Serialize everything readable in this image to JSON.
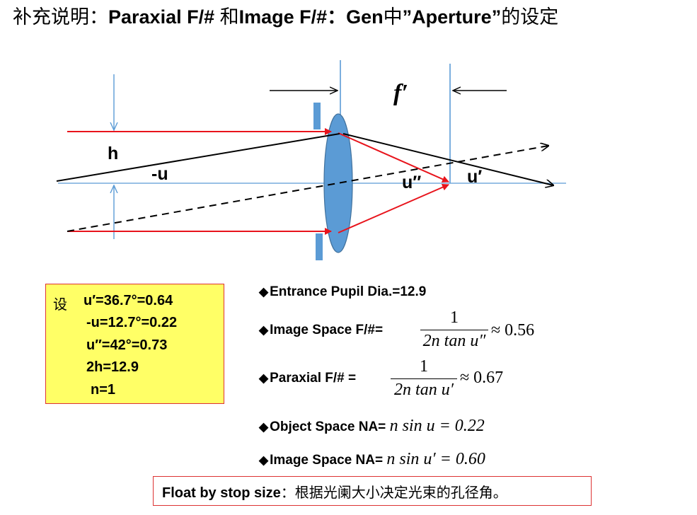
{
  "title": {
    "prefix": "补充说明：",
    "part1": "Paraxial F/# ",
    "conj": "和",
    "part2": "Image F/#：Gen",
    "mid": "中",
    "part3": "”Aperture”",
    "suffix": "的设定"
  },
  "diagram": {
    "labels": {
      "h": "h",
      "neg_u": "-u",
      "u_double_prime": "u′′",
      "u_prime": "u′",
      "f_prime": "f′"
    },
    "colors": {
      "ray_red": "#e8141c",
      "ray_black": "#000000",
      "lens_fill": "#5b9bd5",
      "axis": "#5b9bd5"
    }
  },
  "given": {
    "label": "设",
    "rows": [
      "u′=36.7°=0.64",
      "-u=12.7°=0.22",
      "u′′=42°=0.73",
      "2h=12.9",
      "n=1"
    ]
  },
  "bullets": {
    "symbol": "◆",
    "entrance_pupil": "Entrance Pupil Dia.=12.9",
    "image_space_f": "Image Space F/#=",
    "image_f_num": "1",
    "image_f_den": "2n tan u″",
    "image_f_approx": "≈ 0.56",
    "paraxial_f": "Paraxial F/# =",
    "paraxial_num": "1",
    "paraxial_den": "2n tan u′",
    "paraxial_approx": "≈ 0.67",
    "object_na": "Object Space  NA=",
    "object_na_expr": "n sin u = 0.22",
    "image_na": "Image Space  NA=",
    "image_na_expr": "n sin u′ = 0.60"
  },
  "note": {
    "en": "Float by stop size",
    "cn": "：根据光阑大小决定光束的孔径角。"
  }
}
